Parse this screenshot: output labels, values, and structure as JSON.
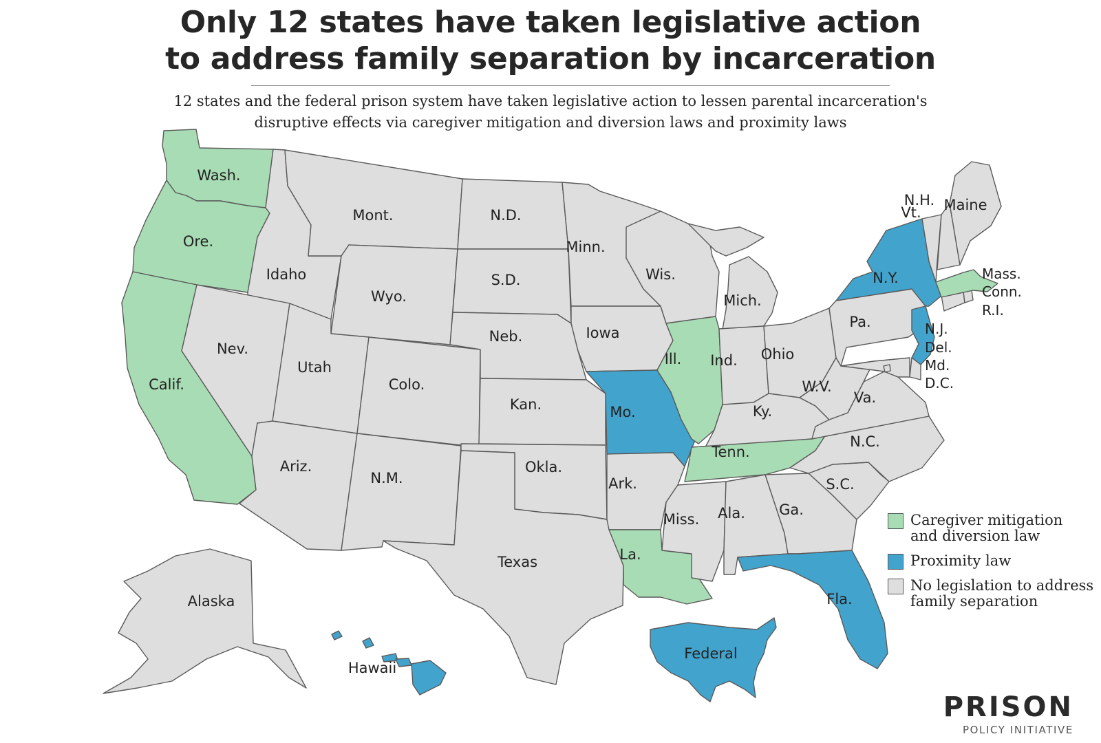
{
  "title": {
    "line1": "Only 12 states have taken legislative action",
    "line2": "to address family separation by incarceration"
  },
  "subtitle": {
    "line1": "12 states and the federal prison system have taken legislative action to lessen parental incarceration's",
    "line2": "disruptive effects via caregiver mitigation and diversion laws and proximity laws"
  },
  "colors": {
    "caregiver": "#a8dcb4",
    "proximity": "#42a3cc",
    "none": "#dedede",
    "border": "#5a5a5a"
  },
  "legend": [
    {
      "key": "caregiver",
      "label": "Caregiver mitigation and diversion law"
    },
    {
      "key": "proximity",
      "label": "Proximity law"
    },
    {
      "key": "none",
      "label": "No legislation to address family separation"
    }
  ],
  "states": {
    "wa": {
      "name": "Wash.",
      "category": "caregiver"
    },
    "or": {
      "name": "Ore.",
      "category": "caregiver"
    },
    "ca": {
      "name": "Calif.",
      "category": "caregiver"
    },
    "id": {
      "name": "Idaho",
      "category": "none"
    },
    "nv": {
      "name": "Nev.",
      "category": "none"
    },
    "mt": {
      "name": "Mont.",
      "category": "none"
    },
    "wy": {
      "name": "Wyo.",
      "category": "none"
    },
    "ut": {
      "name": "Utah",
      "category": "none"
    },
    "az": {
      "name": "Ariz.",
      "category": "none"
    },
    "co": {
      "name": "Colo.",
      "category": "none"
    },
    "nm": {
      "name": "N.M.",
      "category": "none"
    },
    "nd": {
      "name": "N.D.",
      "category": "none"
    },
    "sd": {
      "name": "S.D.",
      "category": "none"
    },
    "ne": {
      "name": "Neb.",
      "category": "none"
    },
    "ks": {
      "name": "Kan.",
      "category": "none"
    },
    "ok": {
      "name": "Okla.",
      "category": "none"
    },
    "tx": {
      "name": "Texas",
      "category": "none"
    },
    "mn": {
      "name": "Minn.",
      "category": "none"
    },
    "ia": {
      "name": "Iowa",
      "category": "none"
    },
    "mo": {
      "name": "Mo.",
      "category": "proximity"
    },
    "ar": {
      "name": "Ark.",
      "category": "none"
    },
    "la": {
      "name": "La.",
      "category": "caregiver"
    },
    "wi": {
      "name": "Wis.",
      "category": "none"
    },
    "il": {
      "name": "Ill.",
      "category": "caregiver"
    },
    "mi": {
      "name": "Mich.",
      "category": "none"
    },
    "in": {
      "name": "Ind.",
      "category": "none"
    },
    "oh": {
      "name": "Ohio",
      "category": "none"
    },
    "ky": {
      "name": "Ky.",
      "category": "none"
    },
    "tn": {
      "name": "Tenn.",
      "category": "caregiver"
    },
    "ms": {
      "name": "Miss.",
      "category": "none"
    },
    "al": {
      "name": "Ala.",
      "category": "none"
    },
    "ga": {
      "name": "Ga.",
      "category": "none"
    },
    "fl": {
      "name": "Fla.",
      "category": "proximity"
    },
    "sc": {
      "name": "S.C.",
      "category": "none"
    },
    "nc": {
      "name": "N.C.",
      "category": "none"
    },
    "va": {
      "name": "Va.",
      "category": "none"
    },
    "wv": {
      "name": "W.V.",
      "category": "none"
    },
    "pa": {
      "name": "Pa.",
      "category": "none"
    },
    "ny": {
      "name": "N.Y.",
      "category": "proximity"
    },
    "nj": {
      "name": "N.J.",
      "category": "proximity"
    },
    "de": {
      "name": "Del.",
      "category": "none"
    },
    "md": {
      "name": "Md.",
      "category": "none"
    },
    "dc": {
      "name": "D.C.",
      "category": "none"
    },
    "ct": {
      "name": "Conn.",
      "category": "none"
    },
    "ri": {
      "name": "R.I.",
      "category": "none"
    },
    "ma": {
      "name": "Mass.",
      "category": "caregiver"
    },
    "vt": {
      "name": "Vt.",
      "category": "none"
    },
    "nh": {
      "name": "N.H.",
      "category": "none"
    },
    "me": {
      "name": "Maine",
      "category": "none"
    },
    "ak": {
      "name": "Alaska",
      "category": "none"
    },
    "hi": {
      "name": "Hawaii",
      "category": "proximity"
    },
    "federal": {
      "name": "Federal",
      "category": "proximity"
    }
  },
  "logo": {
    "main": "PRISON",
    "sub": "POLICY INITIATIVE"
  }
}
